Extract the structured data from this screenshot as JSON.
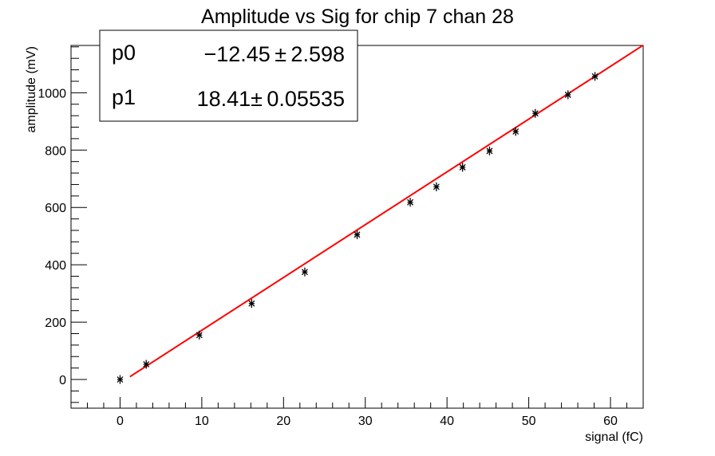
{
  "chart_data": {
    "type": "scatter",
    "title": "Amplitude vs Sig for chip 7 chan 28",
    "xlabel": "signal (fC)",
    "ylabel": "amplitude (mV)",
    "xlim": [
      -6,
      64
    ],
    "ylim": [
      -100,
      1165
    ],
    "xticks": [
      0,
      10,
      20,
      30,
      40,
      50,
      60
    ],
    "yticks": [
      0,
      200,
      400,
      600,
      800,
      1000
    ],
    "grid": false,
    "series": [
      {
        "marker": "star",
        "color": "#000000",
        "points": [
          {
            "x": 0,
            "y": 0
          },
          {
            "x": 3.2,
            "y": 53
          },
          {
            "x": 9.7,
            "y": 155
          },
          {
            "x": 16.1,
            "y": 265
          },
          {
            "x": 22.6,
            "y": 375
          },
          {
            "x": 29.0,
            "y": 505
          },
          {
            "x": 35.5,
            "y": 618
          },
          {
            "x": 38.7,
            "y": 672
          },
          {
            "x": 41.9,
            "y": 740
          },
          {
            "x": 45.2,
            "y": 797
          },
          {
            "x": 48.4,
            "y": 865
          },
          {
            "x": 50.8,
            "y": 928
          },
          {
            "x": 54.8,
            "y": 993
          },
          {
            "x": 58.1,
            "y": 1057
          }
        ]
      }
    ],
    "fit": {
      "color": "#ff0000",
      "x_range": [
        1.2,
        64
      ],
      "p0": -12.45,
      "p1": 18.41
    },
    "stats_box": {
      "position": "top-left",
      "rows": [
        {
          "name": "p0",
          "value": "−12.45 ± 2.598"
        },
        {
          "name": "p1",
          "value": "18.41± 0.05535"
        }
      ]
    }
  }
}
